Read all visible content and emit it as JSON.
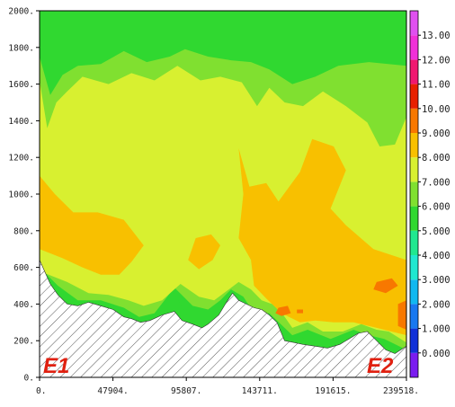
{
  "chart_data": {
    "type": "heatmap",
    "title": "",
    "xlabel": "",
    "ylabel": "",
    "x_ticks": [
      "0.",
      "47904.",
      "95807.",
      "143711.",
      "191615.",
      "239518."
    ],
    "x_tick_values": [
      0,
      47904,
      95807,
      143711,
      191615,
      239518
    ],
    "y_ticks": [
      "0.",
      "200.",
      "400.",
      "600.",
      "800.",
      "1000.",
      "1200.",
      "1400.",
      "1600.",
      "1800.",
      "2000."
    ],
    "y_tick_values": [
      0,
      200,
      400,
      600,
      800,
      1000,
      1200,
      1400,
      1600,
      1800,
      2000
    ],
    "xlim": [
      0,
      239518
    ],
    "ylim": [
      0,
      2000
    ],
    "colorbar": {
      "labels": [
        "0.000",
        "1.000",
        "2.000",
        "3.000",
        "4.000",
        "5.000",
        "6.000",
        "7.000",
        "8.000",
        "9.000",
        "10.00",
        "11.00",
        "12.00",
        "13.00"
      ],
      "colors": [
        "#7a1cf0",
        "#1030d8",
        "#1878f0",
        "#10b8f0",
        "#20e8d0",
        "#20e890",
        "#30d830",
        "#80e030",
        "#d8f030",
        "#f8c000",
        "#f87800",
        "#e82000",
        "#f01870",
        "#f030d8",
        "#e050f0"
      ]
    },
    "contour_levels": [
      {
        "level": 6,
        "color": "#30d830",
        "vertices": [
          [
            0,
            2000
          ],
          [
            239518,
            2000
          ],
          [
            239518,
            120
          ],
          [
            220000,
            170
          ],
          [
            200000,
            180
          ],
          [
            175000,
            200
          ],
          [
            150000,
            330
          ],
          [
            135000,
            330
          ],
          [
            125000,
            460
          ],
          [
            115000,
            380
          ],
          [
            106000,
            280
          ],
          [
            97000,
            330
          ],
          [
            87000,
            470
          ],
          [
            75000,
            320
          ],
          [
            66000,
            290
          ],
          [
            58000,
            340
          ],
          [
            45000,
            400
          ],
          [
            30000,
            390
          ],
          [
            14000,
            460
          ],
          [
            0,
            650
          ]
        ]
      },
      {
        "level": 7,
        "color": "#80e030",
        "vertices": [
          [
            0,
            1750
          ],
          [
            7000,
            1540
          ],
          [
            15000,
            1650
          ],
          [
            25000,
            1700
          ],
          [
            40000,
            1710
          ],
          [
            55000,
            1780
          ],
          [
            70000,
            1720
          ],
          [
            85000,
            1750
          ],
          [
            95000,
            1790
          ],
          [
            110000,
            1750
          ],
          [
            125000,
            1730
          ],
          [
            138000,
            1720
          ],
          [
            150000,
            1680
          ],
          [
            165000,
            1600
          ],
          [
            180000,
            1640
          ],
          [
            195000,
            1700
          ],
          [
            215000,
            1720
          ],
          [
            239518,
            1700
          ],
          [
            239518,
            150
          ],
          [
            225000,
            210
          ],
          [
            215000,
            230
          ],
          [
            205000,
            260
          ],
          [
            190000,
            210
          ],
          [
            175000,
            260
          ],
          [
            165000,
            230
          ],
          [
            150000,
            350
          ],
          [
            140000,
            350
          ],
          [
            133000,
            440
          ],
          [
            125000,
            480
          ],
          [
            118000,
            420
          ],
          [
            110000,
            370
          ],
          [
            100000,
            390
          ],
          [
            88000,
            490
          ],
          [
            75000,
            350
          ],
          [
            65000,
            330
          ],
          [
            55000,
            380
          ],
          [
            40000,
            420
          ],
          [
            25000,
            420
          ],
          [
            12000,
            500
          ],
          [
            0,
            600
          ]
        ]
      },
      {
        "level": 8,
        "color": "#d8f030",
        "vertices": [
          [
            0,
            1620
          ],
          [
            5000,
            1360
          ],
          [
            11000,
            1500
          ],
          [
            18000,
            1560
          ],
          [
            28000,
            1640
          ],
          [
            45000,
            1600
          ],
          [
            60000,
            1660
          ],
          [
            75000,
            1620
          ],
          [
            90000,
            1700
          ],
          [
            105000,
            1620
          ],
          [
            118000,
            1640
          ],
          [
            132000,
            1610
          ],
          [
            142000,
            1480
          ],
          [
            150000,
            1580
          ],
          [
            160000,
            1500
          ],
          [
            172000,
            1480
          ],
          [
            185000,
            1560
          ],
          [
            200000,
            1480
          ],
          [
            214000,
            1390
          ],
          [
            222000,
            1260
          ],
          [
            232000,
            1270
          ],
          [
            239518,
            1420
          ],
          [
            239518,
            190
          ],
          [
            228000,
            250
          ],
          [
            220000,
            260
          ],
          [
            210000,
            290
          ],
          [
            198000,
            250
          ],
          [
            185000,
            250
          ],
          [
            175000,
            300
          ],
          [
            165000,
            270
          ],
          [
            155000,
            390
          ],
          [
            145000,
            420
          ],
          [
            138000,
            480
          ],
          [
            130000,
            520
          ],
          [
            122000,
            470
          ],
          [
            114000,
            420
          ],
          [
            104000,
            440
          ],
          [
            92000,
            510
          ],
          [
            80000,
            420
          ],
          [
            68000,
            390
          ],
          [
            58000,
            420
          ],
          [
            45000,
            450
          ],
          [
            32000,
            460
          ],
          [
            18000,
            520
          ],
          [
            0,
            580
          ]
        ]
      },
      {
        "level": 9,
        "color": "#f8c000",
        "vertices": [
          [
            0,
            1100
          ],
          [
            10000,
            1000
          ],
          [
            22000,
            900
          ],
          [
            38000,
            900
          ],
          [
            55000,
            860
          ],
          [
            68000,
            720
          ],
          [
            60000,
            630
          ],
          [
            52000,
            560
          ],
          [
            40000,
            560
          ],
          [
            28000,
            600
          ],
          [
            15000,
            650
          ],
          [
            0,
            700
          ]
        ]
      },
      {
        "level": 9,
        "color": "#f8c000",
        "vertices": [
          [
            130000,
            1250
          ],
          [
            137000,
            1040
          ],
          [
            148000,
            1060
          ],
          [
            156000,
            960
          ],
          [
            170000,
            1120
          ],
          [
            178000,
            1300
          ],
          [
            192000,
            1260
          ],
          [
            200000,
            1130
          ],
          [
            190000,
            920
          ],
          [
            200000,
            830
          ],
          [
            218000,
            700
          ],
          [
            239518,
            640
          ],
          [
            239518,
            230
          ],
          [
            220000,
            270
          ],
          [
            205000,
            300
          ],
          [
            192000,
            300
          ],
          [
            180000,
            310
          ],
          [
            170000,
            300
          ],
          [
            158000,
            350
          ],
          [
            148000,
            430
          ],
          [
            140000,
            500
          ],
          [
            138000,
            640
          ],
          [
            130000,
            760
          ],
          [
            133000,
            1000
          ]
        ]
      },
      {
        "level": 9,
        "color": "#f8c000",
        "vertices": [
          [
            102000,
            760
          ],
          [
            112000,
            780
          ],
          [
            118000,
            720
          ],
          [
            113000,
            640
          ],
          [
            104000,
            590
          ],
          [
            97000,
            640
          ]
        ]
      },
      {
        "level": 10,
        "color": "#f87800",
        "vertices": [
          [
            220000,
            520
          ],
          [
            230000,
            540
          ],
          [
            234000,
            500
          ],
          [
            226000,
            460
          ],
          [
            218000,
            480
          ]
        ]
      },
      {
        "level": 10,
        "color": "#f87800",
        "vertices": [
          [
            156000,
            380
          ],
          [
            162000,
            390
          ],
          [
            164000,
            350
          ],
          [
            158000,
            335
          ],
          [
            154000,
            350
          ]
        ]
      },
      {
        "level": 10,
        "color": "#f87800",
        "vertices": [
          [
            168000,
            370
          ],
          [
            172000,
            370
          ],
          [
            172000,
            350
          ],
          [
            168000,
            350
          ]
        ]
      },
      {
        "level": 10,
        "color": "#f87800",
        "vertices": [
          [
            234000,
            400
          ],
          [
            239518,
            420
          ],
          [
            239518,
            260
          ],
          [
            234000,
            280
          ]
        ]
      }
    ],
    "terrain": [
      [
        0,
        640
      ],
      [
        7000,
        510
      ],
      [
        12000,
        450
      ],
      [
        18000,
        400
      ],
      [
        25000,
        390
      ],
      [
        32000,
        410
      ],
      [
        40000,
        390
      ],
      [
        48000,
        370
      ],
      [
        55000,
        330
      ],
      [
        60000,
        320
      ],
      [
        66000,
        300
      ],
      [
        72000,
        310
      ],
      [
        80000,
        340
      ],
      [
        88000,
        360
      ],
      [
        93000,
        310
      ],
      [
        100000,
        290
      ],
      [
        106000,
        270
      ],
      [
        110000,
        290
      ],
      [
        117000,
        340
      ],
      [
        122000,
        410
      ],
      [
        126000,
        460
      ],
      [
        130000,
        420
      ],
      [
        135000,
        400
      ],
      [
        140000,
        380
      ],
      [
        145000,
        370
      ],
      [
        150000,
        340
      ],
      [
        155000,
        300
      ],
      [
        160000,
        200
      ],
      [
        166000,
        190
      ],
      [
        172000,
        180
      ],
      [
        180000,
        170
      ],
      [
        188000,
        160
      ],
      [
        196000,
        180
      ],
      [
        202000,
        210
      ],
      [
        208000,
        240
      ],
      [
        214000,
        250
      ],
      [
        220000,
        200
      ],
      [
        226000,
        150
      ],
      [
        232000,
        130
      ],
      [
        239518,
        170
      ]
    ],
    "annotations": [
      "E1",
      "E2"
    ]
  }
}
